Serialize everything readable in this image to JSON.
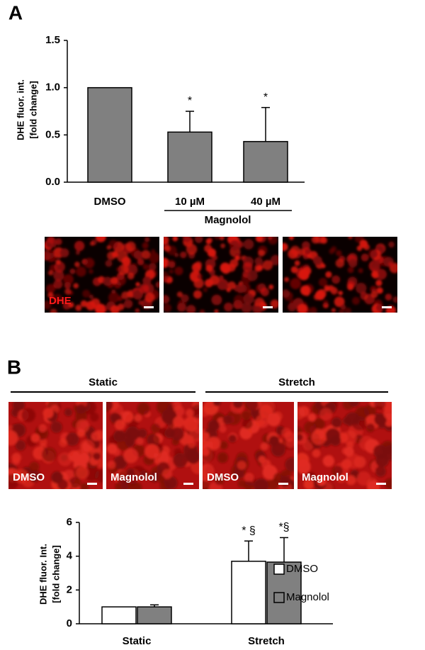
{
  "chart_data": [
    {
      "type": "bar",
      "panel": "A",
      "ylabel": [
        "DHE fluor. int.",
        "[fold change]"
      ],
      "categories": [
        "DMSO",
        "10 µM",
        "40 µM"
      ],
      "group_label": "Magnolol",
      "values": [
        1.0,
        0.53,
        0.43
      ],
      "errors": [
        null,
        0.22,
        0.36
      ],
      "value_annotations": [
        null,
        "*",
        "*"
      ],
      "color": "#808080",
      "ylim": [
        0,
        1.5
      ],
      "yticks": [
        {
          "value": 0,
          "label": "0.0"
        },
        {
          "value": 0.5,
          "label": "0.5"
        },
        {
          "value": 1.0,
          "label": "1.0"
        },
        {
          "value": 1.5,
          "label": "1.5"
        }
      ],
      "image_labels": [
        "DHE",
        null,
        null
      ]
    },
    {
      "type": "grouped_bar",
      "panel": "B",
      "ylabel": [
        "DHE fluor. Int.",
        "[fold change]"
      ],
      "categories": [
        "Static",
        "Stretch"
      ],
      "series": [
        {
          "name": "DMSO",
          "color": "#ffffff",
          "values": [
            1.0,
            3.7
          ],
          "errors": [
            null,
            1.2
          ],
          "value_annotations": [
            null,
            "* §"
          ]
        },
        {
          "name": "Magnolol",
          "color": "#808080",
          "values": [
            1.0,
            3.65
          ],
          "errors": [
            0.12,
            1.45
          ],
          "value_annotations": [
            null,
            "*§"
          ]
        }
      ],
      "ylim": [
        0,
        6
      ],
      "yticks": [
        0,
        2,
        4,
        6
      ],
      "image_groups": [
        {
          "label": "Static",
          "images": [
            "DMSO",
            "Magnolol"
          ]
        },
        {
          "label": "Stretch",
          "images": [
            "DMSO",
            "Magnolol"
          ]
        }
      ]
    }
  ]
}
